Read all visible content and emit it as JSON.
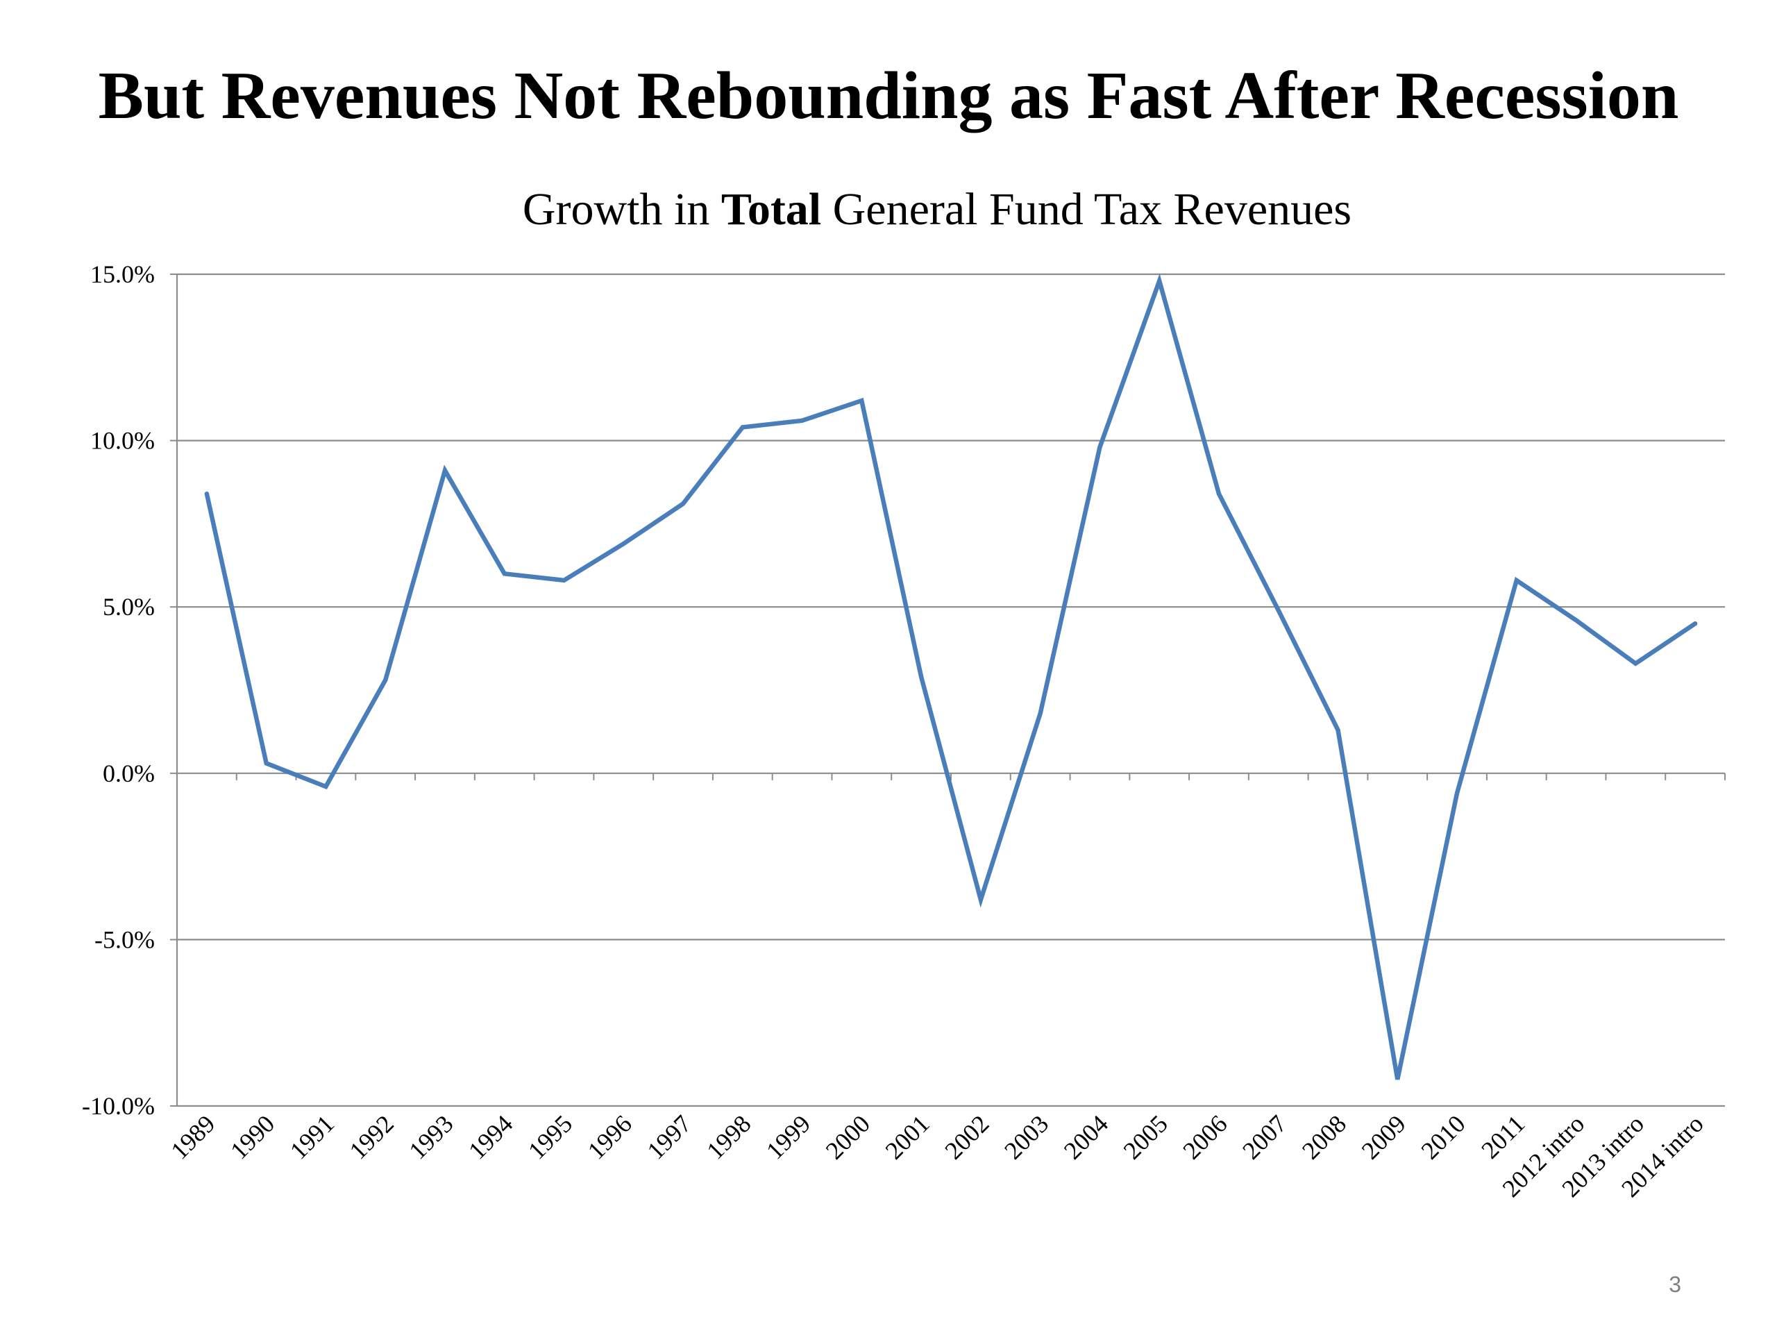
{
  "slide": {
    "title": "But Revenues Not Rebounding as Fast After Recession",
    "page_number": "3"
  },
  "chart_data": {
    "type": "line",
    "title_parts": {
      "before": "Growth in ",
      "bold": "Total",
      "after": " General Fund Tax Revenues"
    },
    "title": "Growth in Total General Fund Tax Revenues",
    "categories": [
      "1989",
      "1990",
      "1991",
      "1992",
      "1993",
      "1994",
      "1995",
      "1996",
      "1997",
      "1998",
      "1999",
      "2000",
      "2001",
      "2002",
      "2003",
      "2004",
      "2005",
      "2006",
      "2007",
      "2008",
      "2009",
      "2010",
      "2011",
      "2012 intro",
      "2013 intro",
      "2014 intro"
    ],
    "series": [
      {
        "values": [
          8.4,
          0.3,
          -0.4,
          2.8,
          9.1,
          6.0,
          5.8,
          6.9,
          8.1,
          10.4,
          10.6,
          11.2,
          2.9,
          -3.8,
          1.8,
          9.8,
          14.8,
          8.4,
          4.9,
          1.3,
          -9.2,
          -0.6,
          5.8,
          4.6,
          3.3,
          4.5
        ],
        "color": "#4a7ebb"
      }
    ],
    "ylim": [
      -10.0,
      15.0
    ],
    "yticks": [
      -10.0,
      -5.0,
      0.0,
      5.0,
      10.0,
      15.0
    ],
    "ytick_labels": [
      "-10.0%",
      "-5.0%",
      "0.0%",
      "5.0%",
      "10.0%",
      "15.0%"
    ],
    "grid": true,
    "gridline_color": "#8c8c8c",
    "legend": "none",
    "xlabel": "",
    "ylabel": ""
  }
}
